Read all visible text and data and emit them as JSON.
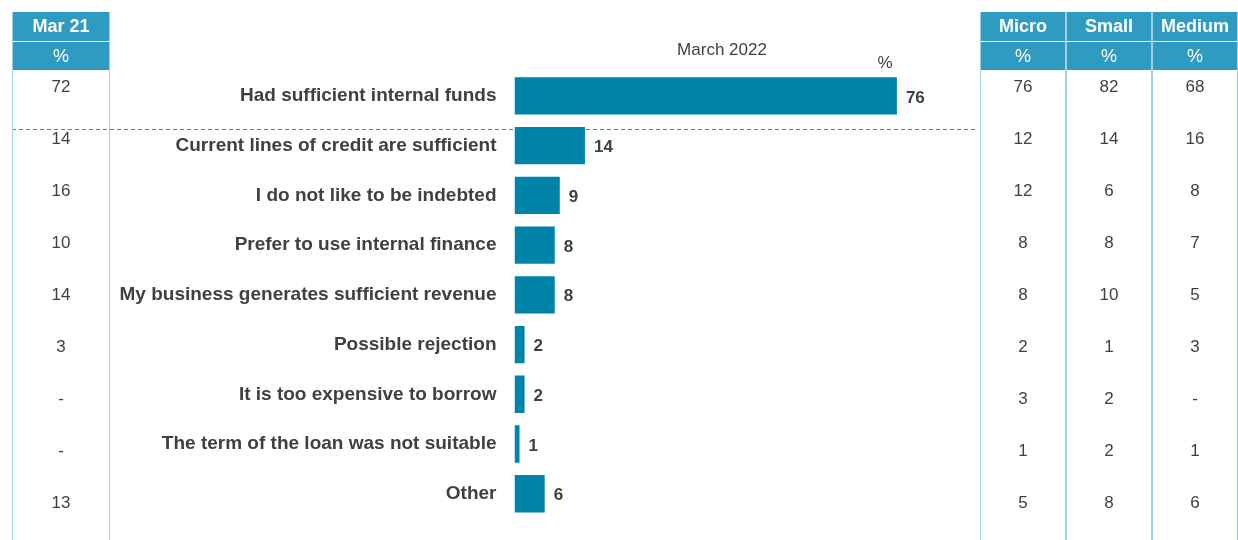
{
  "chart_data": [
    {
      "type": "other",
      "categories": [
        "Mar 21"
      ],
      "annotations": [
        "%",
        "72",
        "14",
        "16",
        "10",
        "14",
        "3",
        "-",
        "-",
        "13"
      ]
    },
    {
      "type": "bar",
      "orientation": "horizontal",
      "title": "March 2022",
      "annotations": [
        "%"
      ],
      "categories": [
        "Had sufficient internal funds",
        "Current lines of credit are sufficient",
        "I do not like to be indebted",
        "Prefer to use internal finance",
        "My business generates sufficient revenue",
        "Possible rejection",
        "It is too expensive to borrow",
        "The term of the loan was not suitable",
        "Other"
      ],
      "values": [
        76,
        14,
        9,
        8,
        8,
        2,
        2,
        1,
        6
      ],
      "color": "#0083a9",
      "data_labels": true
    },
    {
      "type": "other",
      "categories": [
        "Micro",
        "Small",
        "Medium"
      ],
      "annotations": [
        "%",
        "%",
        "%",
        "76",
        "82",
        "68",
        "12",
        "14",
        "16",
        "12",
        "6",
        "8",
        "8",
        "8",
        "7",
        "8",
        "10",
        "5",
        "2",
        "1",
        "3",
        "3",
        "2",
        "-",
        "1",
        "2",
        "1",
        "5",
        "8",
        "6"
      ]
    }
  ]
}
